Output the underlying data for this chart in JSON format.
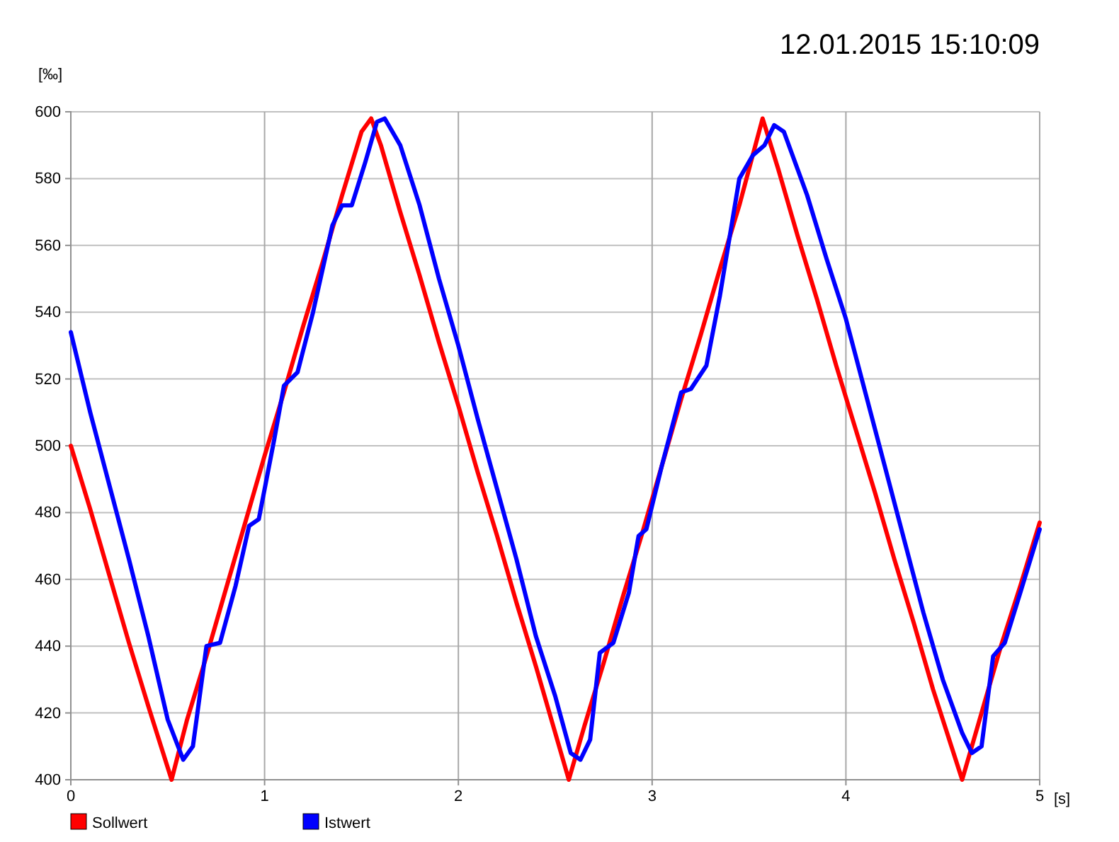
{
  "chart_data": {
    "type": "line",
    "title": "12.01.2015 15:10:09",
    "xlabel": "[s]",
    "ylabel": "[‰]",
    "xlim": [
      0,
      5
    ],
    "xticks": [
      0,
      1,
      2,
      3,
      4,
      5
    ],
    "ylim": [
      400,
      600
    ],
    "yticks": [
      400,
      420,
      440,
      460,
      480,
      500,
      520,
      540,
      560,
      580,
      600
    ],
    "grid": true,
    "legend": "bottom left",
    "marker": "none",
    "line_style": "solid",
    "series": [
      {
        "name": "Sollwert",
        "color": "#ff0000",
        "x": [
          0,
          0.1,
          0.2,
          0.3,
          0.4,
          0.52,
          0.6,
          0.7,
          0.8,
          0.9,
          1.0,
          1.1,
          1.2,
          1.3,
          1.4,
          1.5,
          1.55,
          1.6,
          1.7,
          1.8,
          1.9,
          2.0,
          2.1,
          2.2,
          2.3,
          2.4,
          2.57,
          2.65,
          2.75,
          2.85,
          2.95,
          3.05,
          3.15,
          3.25,
          3.35,
          3.45,
          3.57,
          3.65,
          3.75,
          3.85,
          3.95,
          4.05,
          4.15,
          4.25,
          4.35,
          4.45,
          4.6,
          4.7,
          4.8,
          4.9,
          5.0
        ],
        "values": [
          500,
          481,
          461,
          441,
          422,
          400,
          418,
          437,
          457,
          477,
          497,
          516,
          536,
          555,
          575,
          594,
          598,
          590,
          570,
          551,
          531,
          512,
          492,
          473,
          453,
          434,
          400,
          416,
          435,
          455,
          474,
          494,
          514,
          533,
          553,
          572,
          598,
          583,
          563,
          544,
          524,
          505,
          486,
          466,
          447,
          427,
          400,
          420,
          440,
          458,
          477
        ]
      },
      {
        "name": "Istwert",
        "color": "#0000ff",
        "x": [
          0,
          0.1,
          0.2,
          0.3,
          0.4,
          0.5,
          0.58,
          0.63,
          0.7,
          0.77,
          0.85,
          0.92,
          0.97,
          1.05,
          1.1,
          1.17,
          1.25,
          1.35,
          1.4,
          1.45,
          1.52,
          1.58,
          1.62,
          1.7,
          1.8,
          1.9,
          2.0,
          2.1,
          2.2,
          2.3,
          2.4,
          2.5,
          2.58,
          2.63,
          2.68,
          2.73,
          2.8,
          2.88,
          2.93,
          2.97,
          3.05,
          3.15,
          3.2,
          3.28,
          3.35,
          3.45,
          3.52,
          3.58,
          3.63,
          3.68,
          3.8,
          3.9,
          4.0,
          4.1,
          4.2,
          4.3,
          4.4,
          4.5,
          4.6,
          4.65,
          4.7,
          4.76,
          4.82,
          4.9,
          5.0
        ],
        "values": [
          534,
          510,
          488,
          466,
          443,
          418,
          406,
          410,
          440,
          441,
          458,
          476,
          478,
          502,
          518,
          522,
          540,
          566,
          572,
          572,
          585,
          597,
          598,
          590,
          572,
          550,
          530,
          508,
          487,
          466,
          443,
          425,
          408,
          406,
          412,
          438,
          441,
          456,
          473,
          475,
          494,
          516,
          517,
          524,
          545,
          580,
          587,
          590,
          596,
          594,
          575,
          556,
          538,
          516,
          494,
          472,
          450,
          430,
          414,
          408,
          410,
          437,
          441,
          456,
          475
        ]
      }
    ]
  }
}
